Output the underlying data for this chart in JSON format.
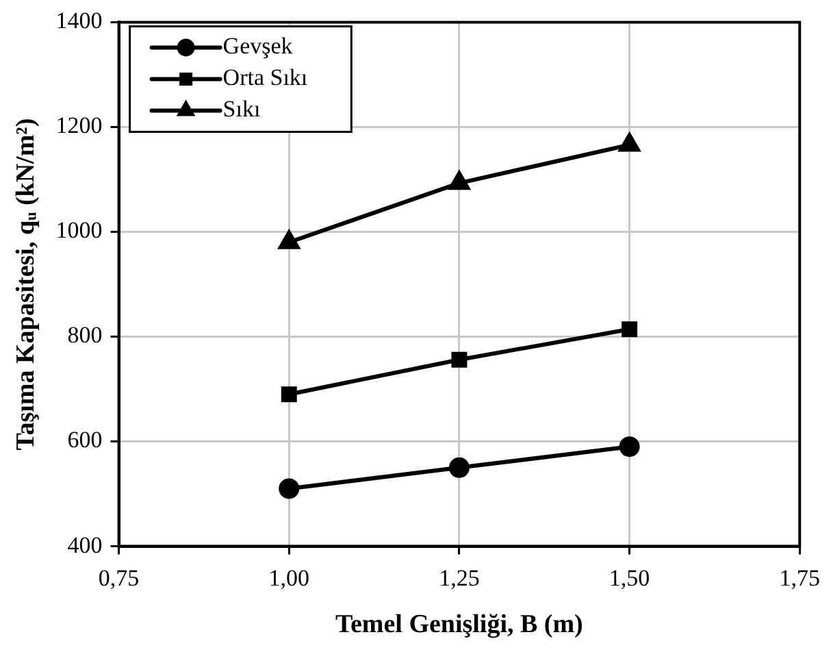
{
  "chart_data": {
    "type": "line",
    "xlabel": "Temel Genişliği, B (m)",
    "ylabel": "Taşıma Kapasitesi, qᵤ (kN/m²)",
    "x": [
      1.0,
      1.25,
      1.5
    ],
    "series": [
      {
        "name": "Gevşek",
        "color": "#000000",
        "marker": "circle",
        "values": [
          510,
          550,
          590
        ]
      },
      {
        "name": "Orta Sıkı",
        "color": "#000000",
        "marker": "square",
        "values": [
          690,
          756,
          814
        ]
      },
      {
        "name": "Sıkı",
        "color": "#000000",
        "marker": "triangle",
        "values": [
          980,
          1093,
          1166
        ]
      }
    ],
    "xlim": [
      0.75,
      1.75
    ],
    "xticks": [
      {
        "value": 0.75,
        "label": "0,75"
      },
      {
        "value": 1.0,
        "label": "1,00"
      },
      {
        "value": 1.25,
        "label": "1,25"
      },
      {
        "value": 1.5,
        "label": "1,50"
      },
      {
        "value": 1.75,
        "label": "1,75"
      }
    ],
    "ylim": [
      400,
      1400
    ],
    "yticks": [
      400,
      600,
      800,
      1000,
      1200,
      1400
    ],
    "grid": true,
    "legend": "top left",
    "line_style": "solid"
  }
}
